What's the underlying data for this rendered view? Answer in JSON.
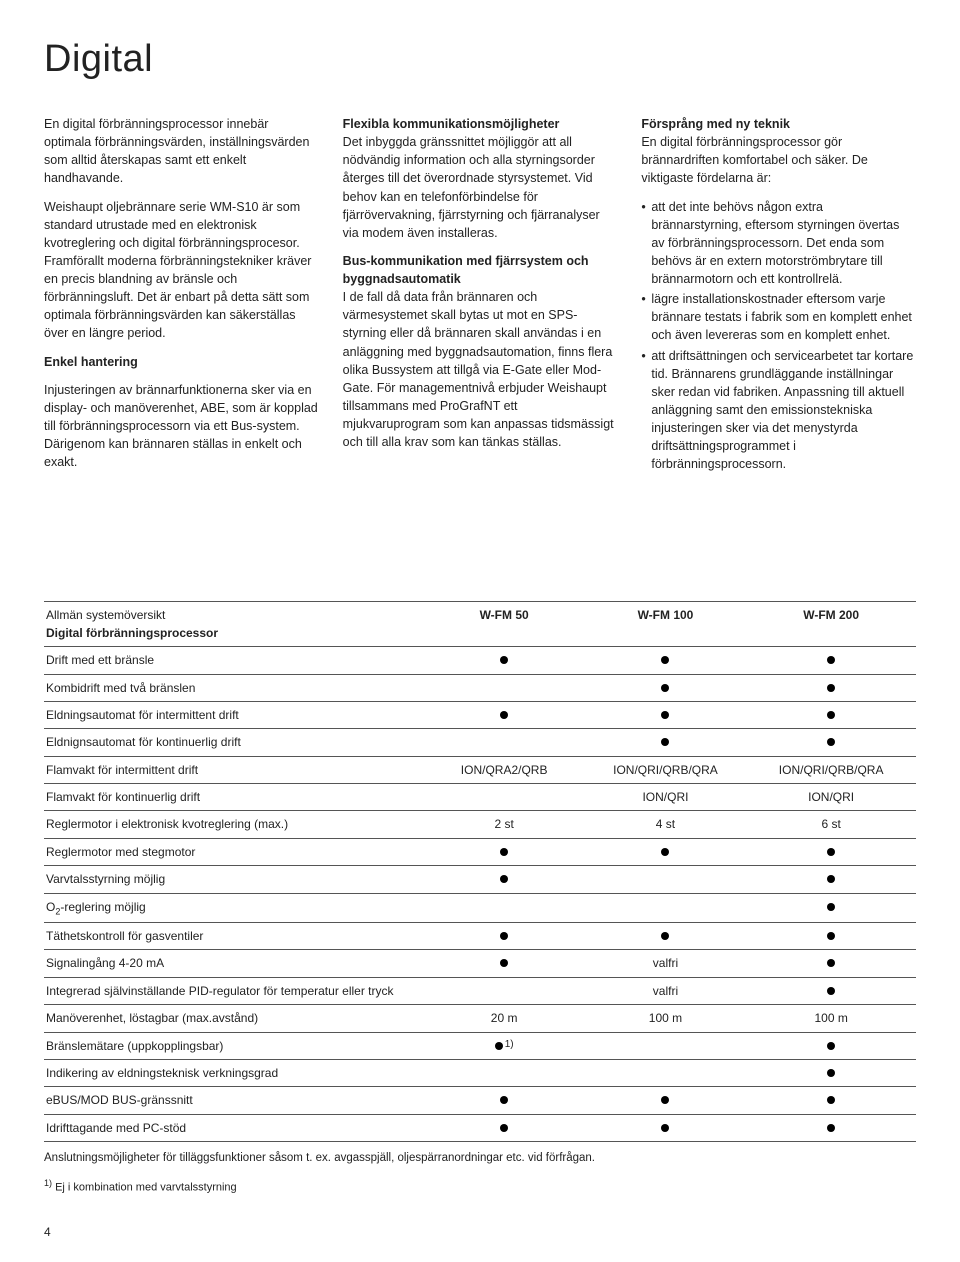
{
  "page_title": "Digital",
  "columns": {
    "c1": {
      "p1": "En digital förbränningsprocessor innebär optimala förbränningsvärden, inställningsvärden som alltid återskapas samt ett enkelt handhavande.",
      "p2": "Weishaupt oljebrännare serie WM-S10 är som standard utrustade med en elektronisk kvotreglering och digital förbränningsprocesor. Framförallt moderna förbränningstekniker kräver en precis blandning av bränsle och förbränningsluft. Det är enbart på detta sätt som optimala förbränningsvärden kan säkerställas över en längre period.",
      "h1": "Enkel hantering",
      "p3": "Injusteringen av brännarfunktionerna sker via en display- och manöverenhet, ABE, som är kopplad till förbränningsprocessorn via ett Bus-system. Därigenom kan brännaren ställas in enkelt och exakt."
    },
    "c2": {
      "h1": "Flexibla kommunikationsmöjligheter",
      "p1": "Det inbyggda gränssnittet möjliggör att all nödvändig information och alla styrningsorder återges till det överordnade styrsystemet. Vid behov kan en telefonförbindelse för fjärrövervakning, fjärrstyrning och fjärranalyser via modem även installeras.",
      "h2": "Bus-kommunikation med fjärrsystem och byggnadsautomatik",
      "p2": "I de fall då data från brännaren och värmesystemet skall bytas ut mot en SPS-styrning eller då brännaren skall användas i en anläggning med byggnadsautomation, finns flera olika Bussystem att tillgå via E-Gate eller Mod-Gate. För managementnivå erbjuder Weishaupt tillsammans med ProGrafNT ett mjukvaruprogram som kan anpassas tidsmässigt och till alla krav som kan tänkas ställas."
    },
    "c3": {
      "h1": "Försprång med ny teknik",
      "p1": "En digital förbränningsprocessor gör brännardriften komfortabel och säker. De viktigaste fördelarna är:",
      "b1": "att det inte behövs någon extra brännarstyrning, eftersom styrningen övertas av förbränningsprocessorn. Det enda som behövs är en extern motorströmbrytare till brännarmotorn och ett kontrollrelä.",
      "b2": "lägre installationskostnader eftersom varje brännare testats i fabrik som en komplett enhet och även levereras som en komplett enhet.",
      "b3": "att driftsättningen och servicearbetet tar kortare tid. Brännarens grundläggande inställningar sker redan vid fabriken. Anpassning till aktuell anläggning samt den emissionstekniska injusteringen sker via det menystyrda driftsättningsprogrammet i förbränningsprocessorn."
    }
  },
  "table": {
    "header": {
      "line1": "Allmän systemöversikt",
      "line2": "Digital förbränningsprocessor",
      "col1": "W-FM 50",
      "col2": "W-FM 100",
      "col3": "W-FM 200"
    },
    "rows": [
      {
        "label_html": "Drift med ett bränsle",
        "c": [
          "dot",
          "dot",
          "dot"
        ]
      },
      {
        "label_html": "Kombidrift med två bränslen",
        "c": [
          "",
          "dot",
          "dot"
        ]
      },
      {
        "label_html": "Eldningsautomat för intermittent drift",
        "c": [
          "dot",
          "dot",
          "dot"
        ]
      },
      {
        "label_html": "Eldnignsautomat för kontinuerlig drift",
        "c": [
          "",
          "dot",
          "dot"
        ]
      },
      {
        "label_html": "Flamvakt för intermittent drift",
        "c": [
          "ION/QRA2/QRB",
          "ION/QRI/QRB/QRA",
          "ION/QRI/QRB/QRA"
        ]
      },
      {
        "label_html": "Flamvakt för kontinuerlig drift",
        "c": [
          "",
          "ION/QRI",
          "ION/QRI"
        ]
      },
      {
        "label_html": "Reglermotor i elektronisk kvotreglering (max.)",
        "c": [
          "2 st",
          "4 st",
          "6 st"
        ]
      },
      {
        "label_html": "Reglermotor med stegmotor",
        "c": [
          "dot",
          "dot",
          "dot"
        ]
      },
      {
        "label_html": "Varvtalsstyrning möjlig",
        "c": [
          "dot",
          "",
          "dot"
        ]
      },
      {
        "label_html": "O<span class=\"sub\">2</span>-reglering möjlig",
        "c": [
          "",
          "",
          "dot"
        ]
      },
      {
        "label_html": "Täthetskontroll för gasventiler",
        "c": [
          "dot",
          "dot",
          "dot"
        ]
      },
      {
        "label_html": "Signalingång 4-20 mA",
        "c": [
          "dot",
          "valfri",
          "dot"
        ]
      },
      {
        "label_html": "Integrerad självinställande PID-regulator för temperatur eller tryck",
        "c": [
          "",
          "valfri",
          "dot"
        ]
      },
      {
        "label_html": "Manöverenhet, löstagbar (max.avstånd)",
        "c": [
          "20 m",
          "100 m",
          "100 m"
        ]
      },
      {
        "label_html": "Bränslemätare (uppkopplingsbar)",
        "c": [
          "dot1",
          "",
          "dot"
        ]
      },
      {
        "label_html": "Indikering av eldningsteknisk verkningsgrad",
        "c": [
          "",
          "",
          "dot"
        ]
      },
      {
        "label_html": "eBUS/MOD BUS-gränssnitt",
        "c": [
          "dot",
          "dot",
          "dot"
        ]
      },
      {
        "label_html": "Idrifttagande med PC-stöd",
        "c": [
          "dot",
          "dot",
          "dot"
        ]
      }
    ],
    "note": "Anslutningsmöjligheter för tilläggsfunktioner såsom t. ex. avgasspjäll, oljespärranordningar etc. vid förfrågan.",
    "footnote_sup": "1)",
    "footnote": "Ej i kombination med varvtalsstyrning"
  },
  "page_number": "4"
}
